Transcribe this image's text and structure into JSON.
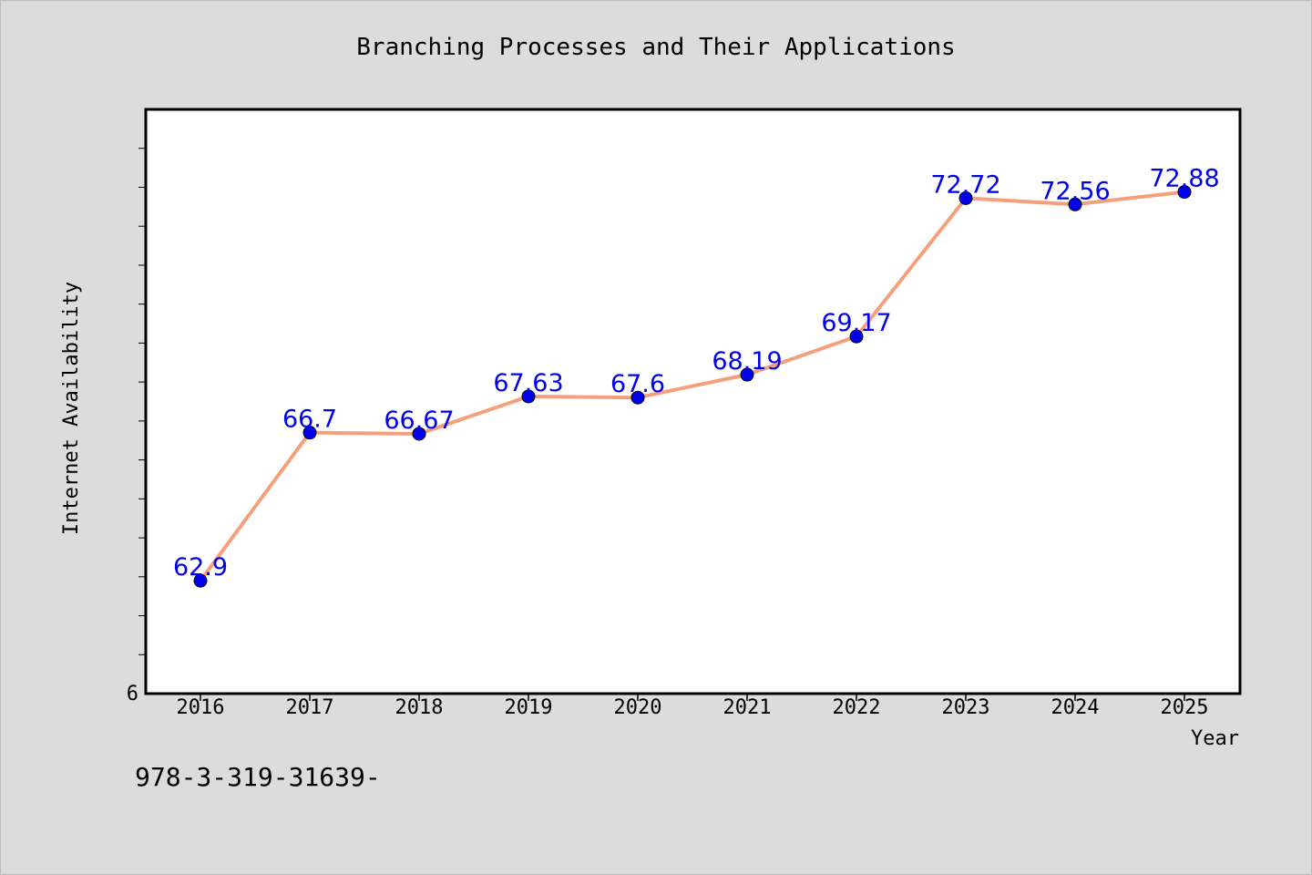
{
  "chart_data": {
    "type": "line",
    "title": "Branching Processes and Their Applications",
    "xlabel": "Year",
    "ylabel": "Internet Availability",
    "categories": [
      "2016",
      "2017",
      "2018",
      "2019",
      "2020",
      "2021",
      "2022",
      "2023",
      "2024",
      "2025"
    ],
    "series": [
      {
        "values": [
          62.9,
          66.7,
          66.67,
          67.63,
          67.6,
          68.19,
          69.17,
          72.72,
          72.56,
          72.88
        ],
        "data_labels": [
          "62.9",
          "66.7",
          "66.67",
          "67.63",
          "67.6",
          "68.19",
          "69.17",
          "72.72",
          "72.56",
          "72.88"
        ],
        "line_color": "#f4a07c",
        "marker_color": "#0000ee",
        "label_color": "#0000ee"
      }
    ],
    "ylim": [
      60.0,
      75.0
    ],
    "y_tick_label": "6",
    "grid": false,
    "legend": "none"
  },
  "footer_text": "978-3-319-31639-",
  "colors": {
    "background": "#dcdcdc",
    "plot_area": "#ffffff"
  }
}
